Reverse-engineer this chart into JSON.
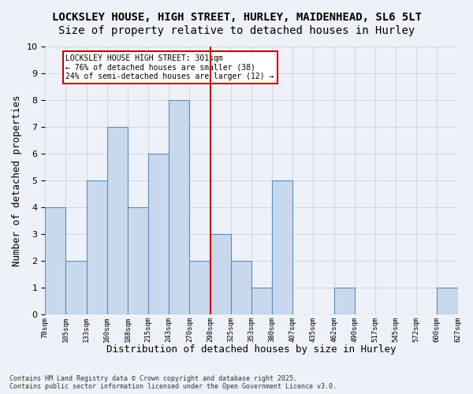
{
  "title1": "LOCKSLEY HOUSE, HIGH STREET, HURLEY, MAIDENHEAD, SL6 5LT",
  "title2": "Size of property relative to detached houses in Hurley",
  "xlabel": "Distribution of detached houses by size in Hurley",
  "ylabel": "Number of detached properties",
  "footnote": "Contains HM Land Registry data © Crown copyright and database right 2025.\nContains public sector information licensed under the Open Government Licence v3.0.",
  "bin_labels": [
    "78sqm",
    "105sqm",
    "133sqm",
    "160sqm",
    "188sqm",
    "215sqm",
    "243sqm",
    "270sqm",
    "298sqm",
    "325sqm",
    "353sqm",
    "380sqm",
    "407sqm",
    "435sqm",
    "462sqm",
    "490sqm",
    "517sqm",
    "545sqm",
    "572sqm",
    "600sqm",
    "627sqm"
  ],
  "bar_heights": [
    4,
    2,
    5,
    7,
    4,
    6,
    8,
    2,
    3,
    2,
    1,
    5,
    0,
    0,
    1,
    0,
    0,
    0,
    0,
    1
  ],
  "bar_color": "#c9d9ed",
  "bar_edge_color": "#5b8db8",
  "ylim": [
    0,
    10
  ],
  "yticks": [
    0,
    1,
    2,
    3,
    4,
    5,
    6,
    7,
    8,
    9,
    10
  ],
  "vline_x": 7.5,
  "annotation_line1": "LOCKSLEY HOUSE HIGH STREET: 301sqm",
  "annotation_line2": "← 76% of detached houses are smaller (38)",
  "annotation_line3": "24% of semi-detached houses are larger (12) →",
  "annotation_box_color": "#ffffff",
  "annotation_box_edge": "#cc0000",
  "vline_color": "#cc0000",
  "grid_color": "#d0d8e8",
  "bg_color": "#eef2f8",
  "title1_fontsize": 10,
  "title2_fontsize": 10,
  "xlabel_fontsize": 9,
  "ylabel_fontsize": 9
}
